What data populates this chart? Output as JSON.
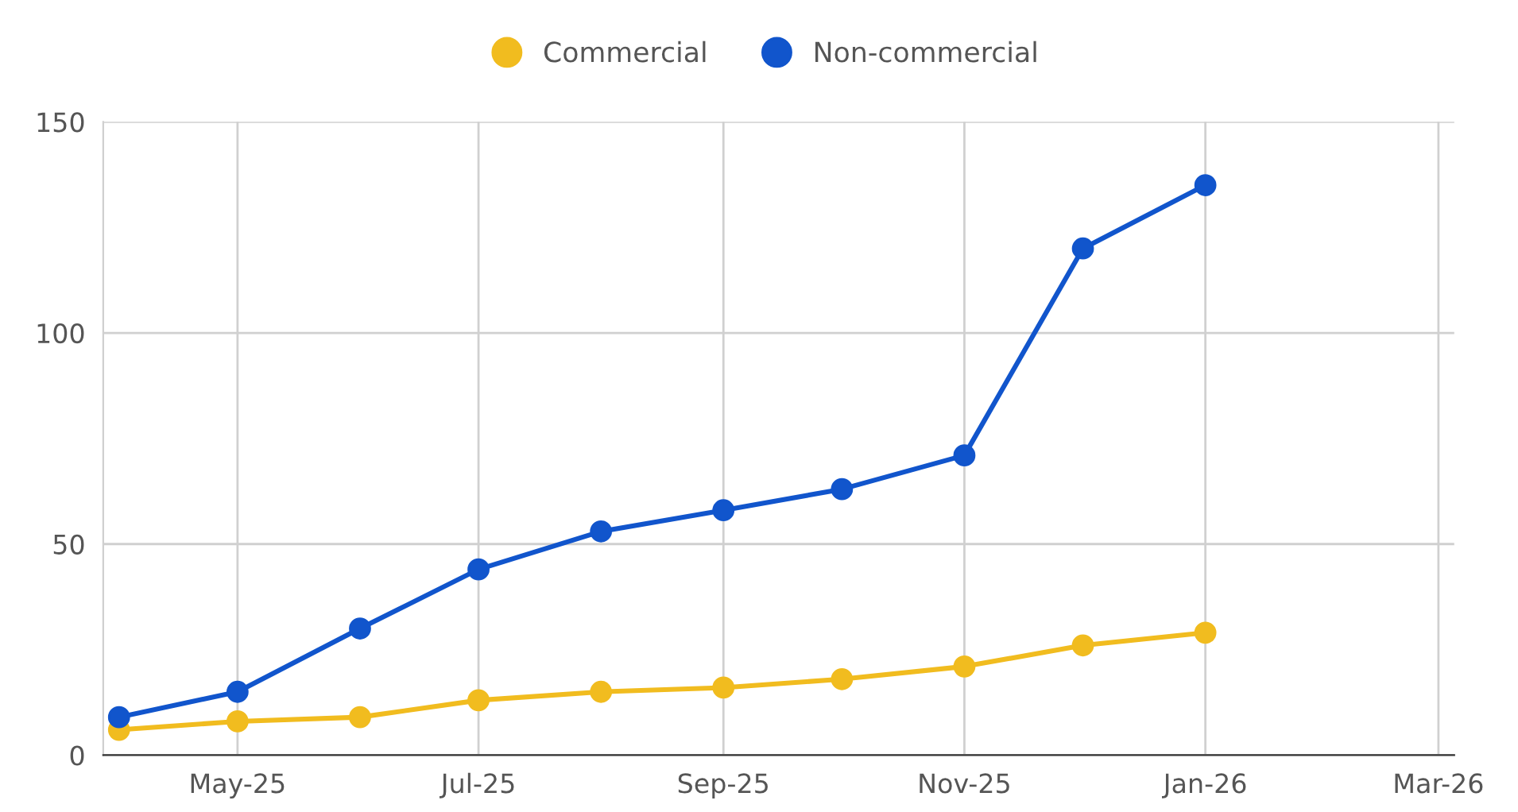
{
  "chart_data": {
    "type": "line",
    "x": [
      "2025-04",
      "2025-05",
      "2025-06",
      "2025-07",
      "2025-08",
      "2025-09",
      "2025-10",
      "2025-11",
      "2025-12",
      "2026-01"
    ],
    "series": [
      {
        "name": "Commercial",
        "color": "#f1bc1f",
        "values": [
          6,
          8,
          9,
          13,
          15,
          16,
          18,
          21,
          26,
          29
        ]
      },
      {
        "name": "Non-commercial",
        "color": "#1155cc",
        "values": [
          9,
          15,
          30,
          44,
          53,
          58,
          63,
          71,
          120,
          135
        ]
      }
    ],
    "xlim": [
      "2025-03-28",
      "2026-03-05"
    ],
    "xticks": [
      {
        "value": "2025-05",
        "label": "May-25"
      },
      {
        "value": "2025-07",
        "label": "Jul-25"
      },
      {
        "value": "2025-09",
        "label": "Sep-25"
      },
      {
        "value": "2025-11",
        "label": "Nov-25"
      },
      {
        "value": "2026-01",
        "label": "Jan-26"
      },
      {
        "value": "2026-03",
        "label": "Mar-26"
      }
    ],
    "ylim": [
      0,
      150
    ],
    "yticks": [
      0,
      50,
      100,
      150
    ],
    "grid": true,
    "legend": "top",
    "marker": "circle",
    "line_style": "solid"
  }
}
